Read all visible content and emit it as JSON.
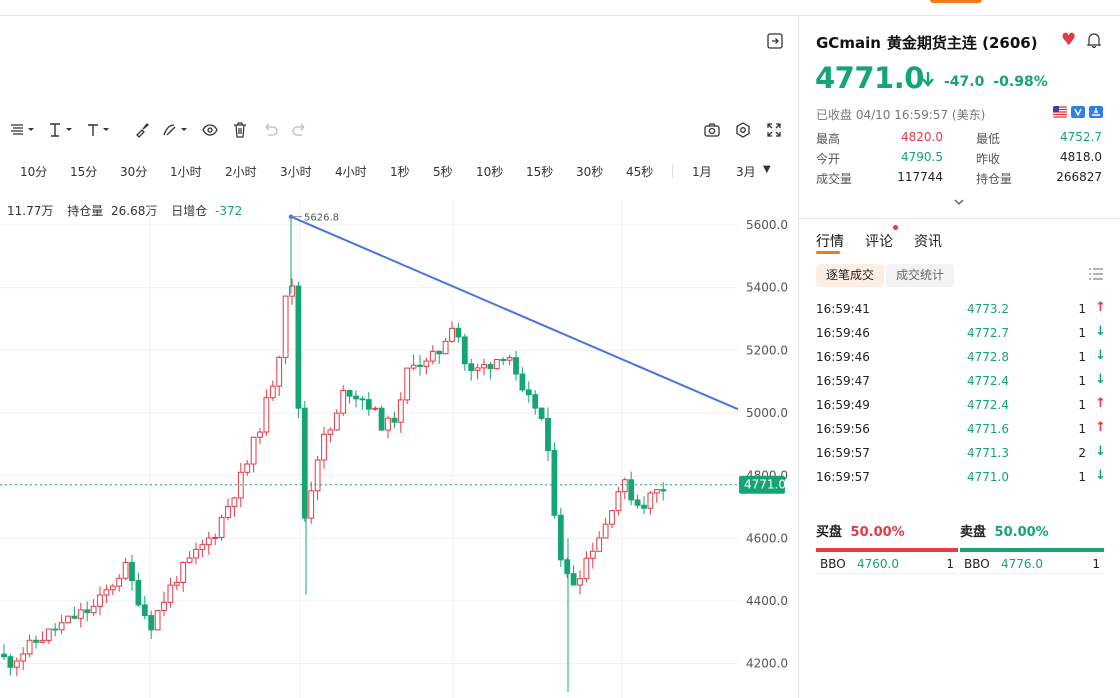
{
  "toolbar": {
    "icons": [
      "bars-style-icon",
      "line-tool-icon",
      "text-tool-icon",
      "brush-icon",
      "pen-icon",
      "eye-icon",
      "trash-icon",
      "undo-icon",
      "redo-icon",
      "camera-icon",
      "settings-icon",
      "fullscreen-icon"
    ]
  },
  "periods": [
    "10分",
    "15分",
    "30分",
    "1小时",
    "2小时",
    "3小时",
    "4小时",
    "1秒",
    "5秒",
    "10秒",
    "15秒",
    "30秒",
    "45秒",
    "1月",
    "3月"
  ],
  "info": {
    "volume": "11.77万",
    "open_interest_label": "持仓量",
    "open_interest": "26.68万",
    "daily_oi_label": "日增仓",
    "daily_oi": "-372"
  },
  "chart_data": {
    "type": "candlestick",
    "y_ticks": [
      "5600.0",
      "5400.0",
      "5200.0",
      "5000.0",
      "4800.0",
      "4600.0",
      "4400.0",
      "4200.0"
    ],
    "ylim": [
      4090,
      5680
    ],
    "current_price_label": "4771.0",
    "high_annotation": "5626.8",
    "trendline": {
      "from_value": 5626.8,
      "to_value": 5012
    }
  },
  "header": {
    "symbol": "GCmain",
    "name": "黄金期货主连 (2606)",
    "price": "4771.0",
    "change": "-47.0",
    "change_pct": "-0.98%",
    "status": "已收盘 04/10 16:59:57 (美东)"
  },
  "stats": [
    {
      "label1": "最高",
      "value1": "4820.0",
      "color1": "red",
      "label2": "最低",
      "value2": "4752.7",
      "color2": "green"
    },
    {
      "label1": "今开",
      "value1": "4790.5",
      "color1": "green",
      "label2": "昨收",
      "value2": "4818.0",
      "color2": "dark"
    },
    {
      "label1": "成交量",
      "value1": "117744",
      "color1": "dark",
      "label2": "持仓量",
      "value2": "266827",
      "color2": "dark"
    }
  ],
  "tabs": [
    "行情",
    "评论",
    "资讯"
  ],
  "subtabs": [
    "逐笔成交",
    "成交统计"
  ],
  "trades": [
    {
      "time": "16:59:41",
      "price": "4773.2",
      "qty": "1",
      "dir": "up"
    },
    {
      "time": "16:59:46",
      "price": "4772.7",
      "qty": "1",
      "dir": "down"
    },
    {
      "time": "16:59:46",
      "price": "4772.8",
      "qty": "1",
      "dir": "down"
    },
    {
      "time": "16:59:47",
      "price": "4772.4",
      "qty": "1",
      "dir": "down"
    },
    {
      "time": "16:59:49",
      "price": "4772.4",
      "qty": "1",
      "dir": "up"
    },
    {
      "time": "16:59:56",
      "price": "4771.6",
      "qty": "1",
      "dir": "up"
    },
    {
      "time": "16:59:57",
      "price": "4771.3",
      "qty": "2",
      "dir": "down"
    },
    {
      "time": "16:59:57",
      "price": "4771.0",
      "qty": "1",
      "dir": "down"
    }
  ],
  "orderbook": {
    "buy_label": "买盘",
    "buy_pct": "50.00%",
    "sell_label": "卖盘",
    "sell_pct": "50.00%",
    "bid": {
      "tag": "BBO",
      "price": "4760.0",
      "qty": "1"
    },
    "ask": {
      "tag": "BBO",
      "price": "4776.0",
      "qty": "1"
    }
  },
  "colors": {
    "up": "#e63946",
    "down": "#14a572",
    "trend": "#4a72e6",
    "accent": "#f07c1e"
  }
}
